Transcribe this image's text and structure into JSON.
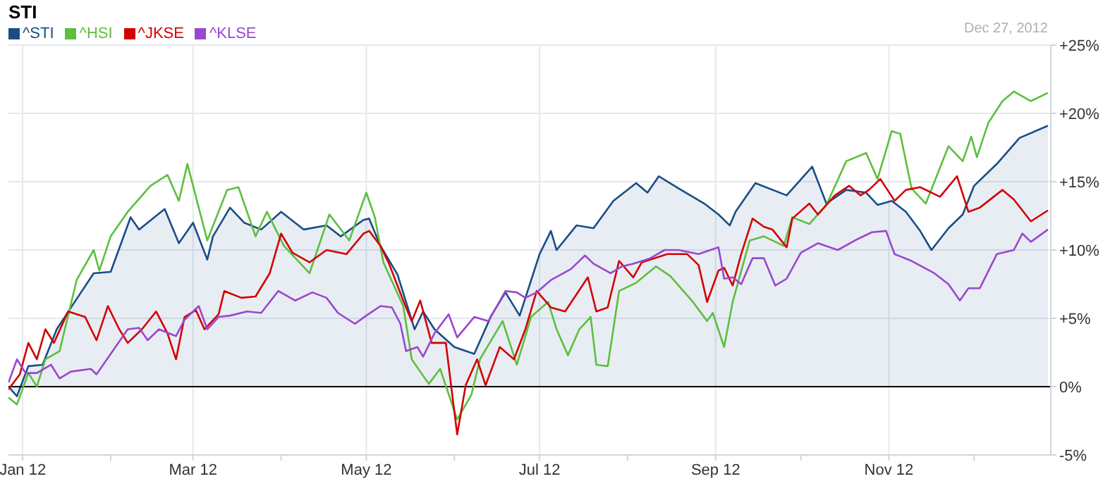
{
  "chart_data": {
    "type": "line",
    "title": "STI",
    "annotations": [
      "Dec 27, 2012"
    ],
    "xlim": [
      "2011-12-27",
      "2012-12-28"
    ],
    "xticks": [
      {
        "value": "2012-01-01",
        "label": "Jan 12"
      },
      {
        "value": "2012-02-01",
        "label": null
      },
      {
        "value": "2012-03-01",
        "label": "Mar 12"
      },
      {
        "value": "2012-04-01",
        "label": null
      },
      {
        "value": "2012-05-01",
        "label": "May 12"
      },
      {
        "value": "2012-06-01",
        "label": null
      },
      {
        "value": "2012-07-01",
        "label": "Jul 12"
      },
      {
        "value": "2012-08-01",
        "label": null
      },
      {
        "value": "2012-09-01",
        "label": "Sep 12"
      },
      {
        "value": "2012-10-01",
        "label": null
      },
      {
        "value": "2012-11-01",
        "label": "Nov 12"
      },
      {
        "value": "2012-12-01",
        "label": null
      }
    ],
    "ylim": [
      -5,
      25
    ],
    "yticks": [
      {
        "value": -5,
        "label": "-5%"
      },
      {
        "value": 0,
        "label": "0%"
      },
      {
        "value": 5,
        "label": "+5%"
      },
      {
        "value": 10,
        "label": "+10%"
      },
      {
        "value": 15,
        "label": "+15%"
      },
      {
        "value": 20,
        "label": "+20%"
      },
      {
        "value": 25,
        "label": "+25%"
      }
    ],
    "grid": true,
    "legend": "top left",
    "line_style": "solid",
    "ref_lines": [
      {
        "axis": "y",
        "value": 0,
        "color": "#000000"
      }
    ],
    "series": [
      {
        "name": "^STI",
        "type": "area",
        "color": "#1a4d86",
        "x": [
          "2011-12-27",
          "2011-12-30",
          "2012-01-03",
          "2012-01-08",
          "2012-01-13",
          "2012-01-19",
          "2012-01-26",
          "2012-02-01",
          "2012-02-08",
          "2012-02-11",
          "2012-02-20",
          "2012-02-25",
          "2012-03-01",
          "2012-03-06",
          "2012-03-08",
          "2012-03-14",
          "2012-03-19",
          "2012-03-25",
          "2012-04-01",
          "2012-04-09",
          "2012-04-17",
          "2012-04-22",
          "2012-04-30",
          "2012-05-02",
          "2012-05-06",
          "2012-05-12",
          "2012-05-18",
          "2012-05-21",
          "2012-05-25",
          "2012-06-01",
          "2012-06-08",
          "2012-06-14",
          "2012-06-19",
          "2012-06-24",
          "2012-07-01",
          "2012-07-05",
          "2012-07-07",
          "2012-07-14",
          "2012-07-20",
          "2012-07-27",
          "2012-08-04",
          "2012-08-08",
          "2012-08-12",
          "2012-08-19",
          "2012-08-28",
          "2012-09-02",
          "2012-09-06",
          "2012-09-08",
          "2012-09-15",
          "2012-09-26",
          "2012-10-05",
          "2012-10-10",
          "2012-10-17",
          "2012-10-24",
          "2012-10-28",
          "2012-11-02",
          "2012-11-07",
          "2012-11-12",
          "2012-11-16",
          "2012-11-22",
          "2012-11-27",
          "2012-12-01",
          "2012-12-09",
          "2012-12-17",
          "2012-12-27"
        ],
        "values": [
          0,
          -0.7,
          1.5,
          1.6,
          4.2,
          6.1,
          8.3,
          8.4,
          12.4,
          11.5,
          13,
          10.5,
          12,
          9.3,
          11,
          13.1,
          12,
          11.5,
          12.8,
          11.5,
          11.8,
          11,
          12.2,
          12.3,
          10.3,
          8.2,
          4.2,
          5.5,
          4.2,
          2.9,
          2.4,
          5.2,
          6.9,
          5.2,
          9.7,
          11.4,
          10,
          11.8,
          11.6,
          13.6,
          14.9,
          14.2,
          15.4,
          14.5,
          13.4,
          12.6,
          11.8,
          12.8,
          14.9,
          14,
          16.1,
          13.4,
          14.4,
          14.2,
          13.3,
          13.6,
          12.8,
          11.4,
          10,
          11.6,
          12.6,
          14.7,
          16.3,
          18.2,
          19.1
        ]
      },
      {
        "name": "^HSI",
        "color": "#5cbf3e",
        "x": [
          "2011-12-27",
          "2011-12-30",
          "2012-01-03",
          "2012-01-06",
          "2012-01-09",
          "2012-01-14",
          "2012-01-20",
          "2012-01-26",
          "2012-01-28",
          "2012-02-01",
          "2012-02-07",
          "2012-02-15",
          "2012-02-21",
          "2012-02-25",
          "2012-02-28",
          "2012-03-06",
          "2012-03-13",
          "2012-03-17",
          "2012-03-23",
          "2012-03-27",
          "2012-04-02",
          "2012-04-11",
          "2012-04-18",
          "2012-04-25",
          "2012-05-01",
          "2012-05-04",
          "2012-05-07",
          "2012-05-14",
          "2012-05-17",
          "2012-05-23",
          "2012-05-27",
          "2012-06-02",
          "2012-06-07",
          "2012-06-10",
          "2012-06-18",
          "2012-06-23",
          "2012-06-28",
          "2012-07-04",
          "2012-07-07",
          "2012-07-11",
          "2012-07-15",
          "2012-07-19",
          "2012-07-21",
          "2012-07-25",
          "2012-07-29",
          "2012-08-04",
          "2012-08-11",
          "2012-08-16",
          "2012-08-24",
          "2012-08-29",
          "2012-08-31",
          "2012-09-04",
          "2012-09-07",
          "2012-09-13",
          "2012-09-18",
          "2012-09-25",
          "2012-09-28",
          "2012-10-04",
          "2012-10-10",
          "2012-10-17",
          "2012-10-24",
          "2012-10-28",
          "2012-11-02",
          "2012-11-05",
          "2012-11-09",
          "2012-11-14",
          "2012-11-22",
          "2012-11-27",
          "2012-11-30",
          "2012-12-02",
          "2012-12-06",
          "2012-12-11",
          "2012-12-15",
          "2012-12-21",
          "2012-12-27"
        ],
        "values": [
          -0.8,
          -1.3,
          1,
          0,
          2,
          2.6,
          7.8,
          10,
          8.5,
          11,
          12.8,
          14.7,
          15.5,
          13.6,
          16.3,
          10.7,
          14.4,
          14.6,
          11,
          12.8,
          10.3,
          8.3,
          12.6,
          10.7,
          14.2,
          12.4,
          9.1,
          5.9,
          2,
          0.2,
          1.3,
          -2.4,
          -0.6,
          2,
          4.8,
          1.6,
          5.1,
          6.2,
          4.2,
          2.3,
          4.2,
          5.1,
          1.6,
          1.5,
          7,
          7.6,
          8.8,
          8.1,
          6.2,
          4.8,
          5.4,
          2.9,
          6.2,
          10.7,
          11,
          10.3,
          12.4,
          11.9,
          13.3,
          16.5,
          17.1,
          15.2,
          18.7,
          18.5,
          14.5,
          13.4,
          17.6,
          16.5,
          18.3,
          16.8,
          19.3,
          20.9,
          21.6,
          20.9,
          21.5
        ]
      },
      {
        "name": "^JKSE",
        "color": "#d30000",
        "x": [
          "2011-12-27",
          "2011-12-31",
          "2012-01-03",
          "2012-01-06",
          "2012-01-09",
          "2012-01-12",
          "2012-01-17",
          "2012-01-23",
          "2012-01-27",
          "2012-01-31",
          "2012-02-04",
          "2012-02-07",
          "2012-02-12",
          "2012-02-17",
          "2012-02-21",
          "2012-02-24",
          "2012-02-27",
          "2012-03-02",
          "2012-03-05",
          "2012-03-10",
          "2012-03-12",
          "2012-03-18",
          "2012-03-23",
          "2012-03-28",
          "2012-04-01",
          "2012-04-05",
          "2012-04-11",
          "2012-04-17",
          "2012-04-24",
          "2012-04-30",
          "2012-05-02",
          "2012-05-06",
          "2012-05-09",
          "2012-05-14",
          "2012-05-17",
          "2012-05-20",
          "2012-05-24",
          "2012-05-29",
          "2012-06-02",
          "2012-06-05",
          "2012-06-09",
          "2012-06-12",
          "2012-06-17",
          "2012-06-22",
          "2012-06-26",
          "2012-06-30",
          "2012-07-05",
          "2012-07-10",
          "2012-07-18",
          "2012-07-21",
          "2012-07-25",
          "2012-07-29",
          "2012-08-03",
          "2012-08-06",
          "2012-08-15",
          "2012-08-22",
          "2012-08-26",
          "2012-08-29",
          "2012-09-02",
          "2012-09-04",
          "2012-09-07",
          "2012-09-10",
          "2012-09-14",
          "2012-09-18",
          "2012-09-21",
          "2012-09-26",
          "2012-09-28",
          "2012-10-04",
          "2012-10-07",
          "2012-10-13",
          "2012-10-18",
          "2012-10-22",
          "2012-10-25",
          "2012-10-29",
          "2012-11-03",
          "2012-11-07",
          "2012-11-12",
          "2012-11-19",
          "2012-11-25",
          "2012-11-29",
          "2012-12-03",
          "2012-12-11",
          "2012-12-15",
          "2012-12-21",
          "2012-12-27"
        ],
        "values": [
          -0.2,
          0.9,
          3.2,
          2,
          4.2,
          3.2,
          5.5,
          5.1,
          3.4,
          5.9,
          4.2,
          3.2,
          4.2,
          5.5,
          3.9,
          2,
          5.1,
          5.6,
          4.2,
          5.3,
          7,
          6.5,
          6.6,
          8.3,
          11.2,
          9.8,
          9.1,
          10,
          9.7,
          11.2,
          11.4,
          10.3,
          9,
          6.3,
          4.8,
          6.3,
          3.2,
          3.2,
          -3.5,
          0.1,
          2,
          0.1,
          2.9,
          2,
          4.2,
          7,
          5.8,
          5.5,
          8,
          5.5,
          5.8,
          9.2,
          8,
          9.1,
          9.7,
          9.7,
          8.9,
          6.2,
          8.5,
          8.7,
          7.4,
          9.7,
          12.3,
          11.7,
          11.5,
          10.2,
          12.3,
          13.4,
          12.6,
          14,
          14.7,
          14,
          14.4,
          15.2,
          13.6,
          14.4,
          14.6,
          13.9,
          15.4,
          12.8,
          13.1,
          14.4,
          13.7,
          12.1,
          12.9
        ]
      },
      {
        "name": "^KLSE",
        "color": "#9a47cf",
        "x": [
          "2011-12-27",
          "2011-12-30",
          "2012-01-02",
          "2012-01-06",
          "2012-01-11",
          "2012-01-14",
          "2012-01-18",
          "2012-01-25",
          "2012-01-27",
          "2012-02-01",
          "2012-02-07",
          "2012-02-11",
          "2012-02-14",
          "2012-02-18",
          "2012-02-24",
          "2012-02-27",
          "2012-03-03",
          "2012-03-06",
          "2012-03-10",
          "2012-03-14",
          "2012-03-20",
          "2012-03-25",
          "2012-03-31",
          "2012-04-06",
          "2012-04-12",
          "2012-04-17",
          "2012-04-21",
          "2012-04-27",
          "2012-05-01",
          "2012-05-06",
          "2012-05-10",
          "2012-05-13",
          "2012-05-15",
          "2012-05-19",
          "2012-05-21",
          "2012-05-25",
          "2012-05-30",
          "2012-06-02",
          "2012-06-08",
          "2012-06-13",
          "2012-06-19",
          "2012-06-23",
          "2012-06-26",
          "2012-06-30",
          "2012-07-05",
          "2012-07-12",
          "2012-07-17",
          "2012-07-20",
          "2012-07-26",
          "2012-07-30",
          "2012-08-03",
          "2012-08-09",
          "2012-08-14",
          "2012-08-19",
          "2012-08-26",
          "2012-09-02",
          "2012-09-04",
          "2012-09-07",
          "2012-09-10",
          "2012-09-14",
          "2012-09-18",
          "2012-09-22",
          "2012-09-26",
          "2012-10-01",
          "2012-10-07",
          "2012-10-14",
          "2012-10-21",
          "2012-10-26",
          "2012-10-31",
          "2012-11-03",
          "2012-11-09",
          "2012-11-17",
          "2012-11-22",
          "2012-11-26",
          "2012-11-29",
          "2012-12-03",
          "2012-12-09",
          "2012-12-15",
          "2012-12-18",
          "2012-12-21",
          "2012-12-27"
        ],
        "values": [
          0.3,
          2,
          1,
          1,
          1.6,
          0.6,
          1.1,
          1.3,
          0.9,
          2.4,
          4.2,
          4.3,
          3.4,
          4.2,
          3.7,
          4.9,
          5.9,
          4.2,
          5.1,
          5.2,
          5.5,
          5.4,
          7,
          6.3,
          6.9,
          6.5,
          5.4,
          4.6,
          5.2,
          5.9,
          5.8,
          4.6,
          2.6,
          2.9,
          2.2,
          3.9,
          5.3,
          3.6,
          5.1,
          4.8,
          7,
          6.9,
          6.5,
          6.9,
          7.8,
          8.6,
          9.6,
          9,
          8.3,
          8.8,
          9,
          9.4,
          10,
          10,
          9.7,
          10.2,
          7.9,
          8,
          7.5,
          9.4,
          9.4,
          7.4,
          7.9,
          9.8,
          10.5,
          10,
          10.8,
          11.3,
          11.4,
          9.7,
          9.2,
          8.3,
          7.5,
          6.3,
          7.2,
          7.2,
          9.7,
          10,
          11.2,
          10.6,
          11.5
        ]
      }
    ]
  }
}
